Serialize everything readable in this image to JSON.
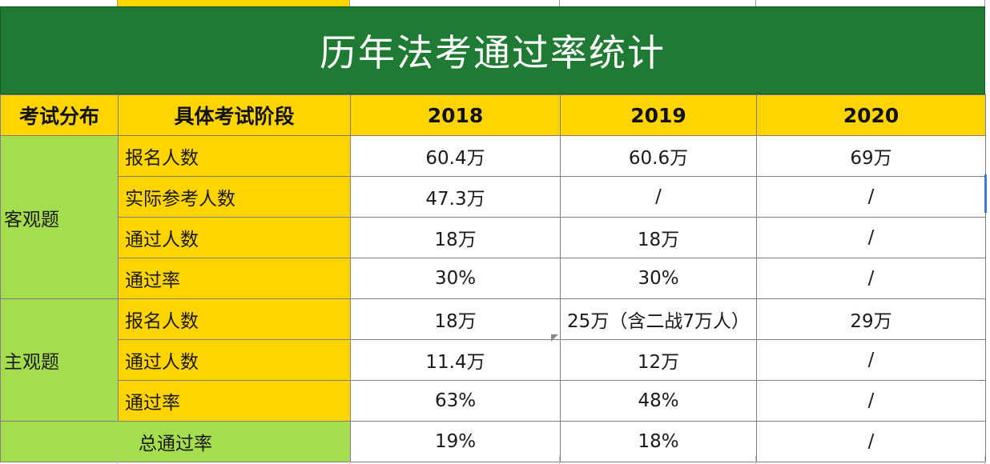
{
  "title": "历年法考通过率统计",
  "header": {
    "category": "考试分布",
    "stage": "具体考试阶段",
    "years": [
      "2018",
      "2019",
      "2020"
    ]
  },
  "sections": [
    {
      "category": "客观题",
      "rows": [
        {
          "stage": "报名人数",
          "values": [
            "60.4万",
            "60.6万",
            "69万"
          ]
        },
        {
          "stage": "实际参考人数",
          "values": [
            "47.3万",
            "/",
            "/"
          ]
        },
        {
          "stage": "通过人数",
          "values": [
            "18万",
            "18万",
            "/"
          ]
        },
        {
          "stage": "通过率",
          "values": [
            "30%",
            "30%",
            "/"
          ]
        }
      ]
    },
    {
      "category": "主观题",
      "rows": [
        {
          "stage": "报名人数",
          "values": [
            "18万",
            "25万（含二战7万人）",
            "29万"
          ]
        },
        {
          "stage": "通过人数",
          "values": [
            "11.4万",
            "12万",
            "/"
          ]
        },
        {
          "stage": "通过率",
          "values": [
            "63%",
            "48%",
            "/"
          ]
        }
      ]
    }
  ],
  "total": {
    "label": "总通过率",
    "values": [
      "19%",
      "18%",
      "/"
    ]
  },
  "colors": {
    "title_bg": "#1f7a33",
    "header_bg": "#ffd400",
    "category_bg": "#a4dd4e",
    "stage_bg": "#ffd400"
  }
}
